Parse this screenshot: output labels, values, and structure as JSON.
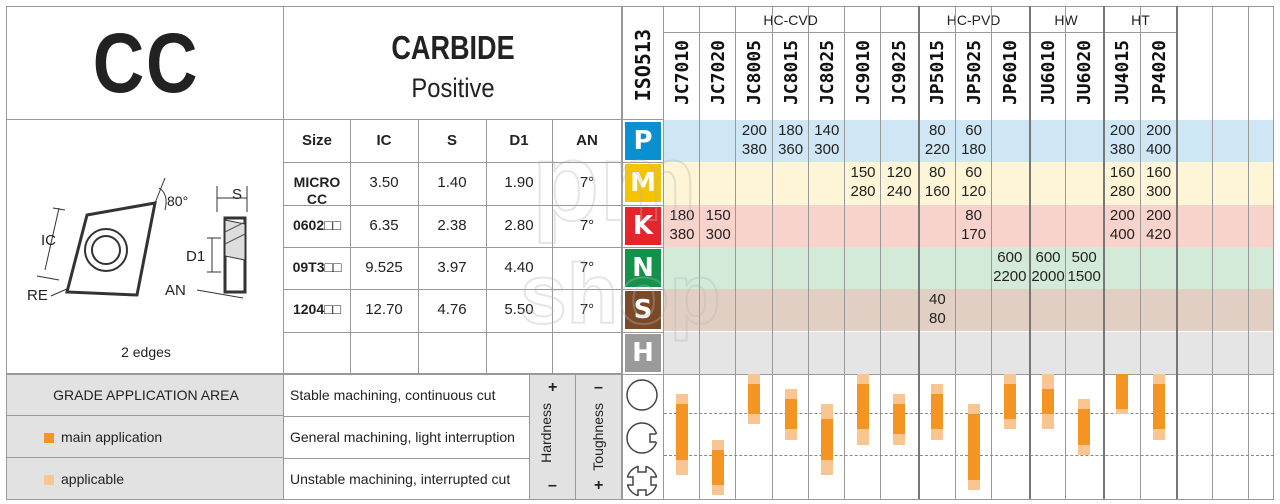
{
  "title": "CC",
  "material": "CARBIDE",
  "geometry": "Positive",
  "iso_header": "ISO513",
  "drawing": {
    "angle": "80°",
    "s": "S",
    "ic": "IC",
    "d1": "D1",
    "re": "RE",
    "an": "AN",
    "edges": "2 edges"
  },
  "dims_headers": [
    "Size",
    "IC",
    "S",
    "D1",
    "AN"
  ],
  "dims_rows": [
    {
      "size": "MICRO CC",
      "ic": "3.50",
      "s": "1.40",
      "d1": "1.90",
      "an": "7°"
    },
    {
      "size": "0602□□",
      "ic": "6.35",
      "s": "2.38",
      "d1": "2.80",
      "an": "7°"
    },
    {
      "size": "09T3□□",
      "ic": "9.525",
      "s": "3.97",
      "d1": "4.40",
      "an": "7°"
    },
    {
      "size": "1204□□",
      "ic": "12.70",
      "s": "4.76",
      "d1": "5.50",
      "an": "7°"
    }
  ],
  "iso_groups": [
    {
      "letter": "P",
      "color": "#0a8fd0",
      "bg": "#cfe6f5"
    },
    {
      "letter": "M",
      "color": "#f5c400",
      "bg": "#fdf5d6"
    },
    {
      "letter": "K",
      "color": "#e3262b",
      "bg": "#f7d3cb"
    },
    {
      "letter": "N",
      "color": "#13934a",
      "bg": "#d3ead9"
    },
    {
      "letter": "S",
      "color": "#7a4a28",
      "bg": "#e2cfc3"
    },
    {
      "letter": "H",
      "color": "#9a9a9a",
      "bg": "#e5e5e5"
    }
  ],
  "grade_groups": [
    "HC-CVD",
    "HC-PVD",
    "HW",
    "HT"
  ],
  "grades": [
    "JC7010",
    "JC7020",
    "JC8005",
    "JC8015",
    "JC8025",
    "JC9010",
    "JC9025",
    "JP5015",
    "JP5025",
    "JP6010",
    "JU6010",
    "JU6020",
    "JU4015",
    "JP4020"
  ],
  "speed_cells": [
    {
      "row": 0,
      "col": 2,
      "top": "200",
      "bottom": "380"
    },
    {
      "row": 0,
      "col": 3,
      "top": "180",
      "bottom": "360"
    },
    {
      "row": 0,
      "col": 4,
      "top": "140",
      "bottom": "300"
    },
    {
      "row": 0,
      "col": 7,
      "top": "80",
      "bottom": "220"
    },
    {
      "row": 0,
      "col": 8,
      "top": "60",
      "bottom": "180"
    },
    {
      "row": 0,
      "col": 12,
      "top": "200",
      "bottom": "380"
    },
    {
      "row": 0,
      "col": 13,
      "top": "200",
      "bottom": "400"
    },
    {
      "row": 1,
      "col": 5,
      "top": "150",
      "bottom": "280"
    },
    {
      "row": 1,
      "col": 6,
      "top": "120",
      "bottom": "240"
    },
    {
      "row": 1,
      "col": 7,
      "top": "80",
      "bottom": "160"
    },
    {
      "row": 1,
      "col": 8,
      "top": "60",
      "bottom": "120"
    },
    {
      "row": 1,
      "col": 12,
      "top": "160",
      "bottom": "280"
    },
    {
      "row": 1,
      "col": 13,
      "top": "160",
      "bottom": "300"
    },
    {
      "row": 2,
      "col": 0,
      "top": "180",
      "bottom": "380"
    },
    {
      "row": 2,
      "col": 1,
      "top": "150",
      "bottom": "300"
    },
    {
      "row": 2,
      "col": 8,
      "top": "80",
      "bottom": "170"
    },
    {
      "row": 2,
      "col": 12,
      "top": "200",
      "bottom": "400"
    },
    {
      "row": 2,
      "col": 13,
      "top": "200",
      "bottom": "420"
    },
    {
      "row": 3,
      "col": 9,
      "top": "600",
      "bottom": "2200"
    },
    {
      "row": 3,
      "col": 10,
      "top": "600",
      "bottom": "2000"
    },
    {
      "row": 3,
      "col": 11,
      "top": "500",
      "bottom": "1500"
    },
    {
      "row": 4,
      "col": 7,
      "top": "40",
      "bottom": "80"
    }
  ],
  "application": {
    "header": "GRADE APPLICATION AREA",
    "legend_main": "main application",
    "legend_applicable": "applicable",
    "cuts": [
      "Stable machining, continuous cut",
      "General machining, light interruption",
      "Unstable machining, interrupted cut"
    ],
    "hardness": "Hardness",
    "toughness": "Toughness",
    "plus": "+",
    "minus": "–",
    "main_color": "#f39423",
    "applicable_color": "#f9c591",
    "bars": [
      {
        "col": 0,
        "main": [
          0.3,
          0.85
        ],
        "app": [
          0.2,
          1.0
        ]
      },
      {
        "col": 1,
        "main": [
          0.75,
          1.1
        ],
        "app": [
          0.65,
          1.2
        ]
      },
      {
        "col": 2,
        "main": [
          0.1,
          0.4
        ],
        "app": [
          0.0,
          0.5
        ]
      },
      {
        "col": 3,
        "main": [
          0.25,
          0.55
        ],
        "app": [
          0.15,
          0.65
        ]
      },
      {
        "col": 4,
        "main": [
          0.45,
          0.85
        ],
        "app": [
          0.3,
          1.0
        ]
      },
      {
        "col": 5,
        "main": [
          0.1,
          0.55
        ],
        "app": [
          0.0,
          0.7
        ]
      },
      {
        "col": 6,
        "main": [
          0.3,
          0.6
        ],
        "app": [
          0.2,
          0.7
        ]
      },
      {
        "col": 7,
        "main": [
          0.2,
          0.55
        ],
        "app": [
          0.1,
          0.65
        ]
      },
      {
        "col": 8,
        "main": [
          0.4,
          1.05
        ],
        "app": [
          0.3,
          1.15
        ]
      },
      {
        "col": 9,
        "main": [
          0.1,
          0.45
        ],
        "app": [
          0.0,
          0.55
        ]
      },
      {
        "col": 10,
        "main": [
          0.15,
          0.4
        ],
        "app": [
          0.0,
          0.55
        ]
      },
      {
        "col": 11,
        "main": [
          0.35,
          0.7
        ],
        "app": [
          0.25,
          0.8
        ]
      },
      {
        "col": 12,
        "main": [
          0.0,
          0.35
        ],
        "app": [
          0.0,
          0.4
        ]
      },
      {
        "col": 13,
        "main": [
          0.1,
          0.55
        ],
        "app": [
          0.0,
          0.65
        ]
      }
    ]
  },
  "watermark": [
    "pm",
    "shop"
  ]
}
